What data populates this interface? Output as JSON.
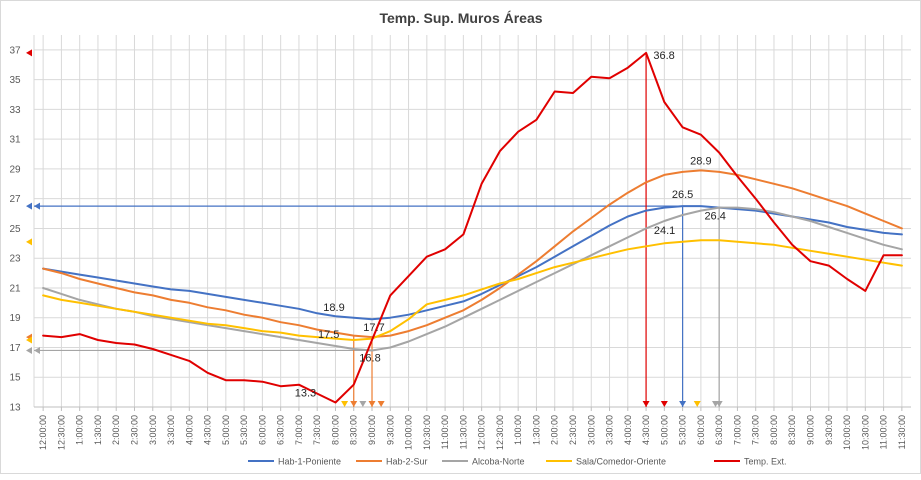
{
  "chart_data": {
    "type": "line",
    "title": "Temp. Sup. Muros Áreas",
    "xlabel": "",
    "ylabel": "",
    "ylim": [
      13,
      38
    ],
    "yticks": [
      13,
      15,
      17,
      19,
      21,
      23,
      25,
      27,
      29,
      31,
      33,
      35,
      37
    ],
    "grid": true,
    "legend_position": "bottom",
    "categories": [
      "12:00:00",
      "12:30:00",
      "1:00:00",
      "1:30:00",
      "2:00:00",
      "2:30:00",
      "3:00:00",
      "3:30:00",
      "4:00:00",
      "4:30:00",
      "5:00:00",
      "5:30:00",
      "6:00:00",
      "6:30:00",
      "7:00:00",
      "7:30:00",
      "8:00:00",
      "8:30:00",
      "9:00:00",
      "9:30:00",
      "10:00:00",
      "10:30:00",
      "11:00:00",
      "11:30:00",
      "12:00:00",
      "12:30:00",
      "1:00:00",
      "1:30:00",
      "2:00:00",
      "2:30:00",
      "3:00:00",
      "3:30:00",
      "4:00:00",
      "4:30:00",
      "5:00:00",
      "5:30:00",
      "6:00:00",
      "6:30:00",
      "7:00:00",
      "7:30:00",
      "8:00:00",
      "8:30:00",
      "9:00:00",
      "9:30:00",
      "10:00:00",
      "10:30:00",
      "11:00:00",
      "11:30:00"
    ],
    "series": [
      {
        "name": "Hab-1-Poniente",
        "color": "#4472c4",
        "values": [
          22.3,
          22.1,
          21.9,
          21.7,
          21.5,
          21.3,
          21.1,
          20.9,
          20.8,
          20.6,
          20.4,
          20.2,
          20.0,
          19.8,
          19.6,
          19.3,
          19.1,
          19.0,
          18.9,
          19.0,
          19.2,
          19.5,
          19.8,
          20.1,
          20.6,
          21.2,
          21.8,
          22.4,
          23.1,
          23.8,
          24.5,
          25.2,
          25.8,
          26.2,
          26.4,
          26.5,
          26.5,
          26.4,
          26.3,
          26.2,
          26.0,
          25.8,
          25.6,
          25.4,
          25.1,
          24.9,
          24.7,
          24.6
        ]
      },
      {
        "name": "Hab-2-Sur",
        "color": "#ed7d31",
        "values": [
          22.3,
          22.0,
          21.6,
          21.3,
          21.0,
          20.7,
          20.5,
          20.2,
          20.0,
          19.7,
          19.5,
          19.2,
          19.0,
          18.7,
          18.5,
          18.2,
          18.0,
          17.8,
          17.7,
          17.8,
          18.1,
          18.5,
          19.0,
          19.5,
          20.2,
          21.0,
          21.9,
          22.8,
          23.8,
          24.8,
          25.7,
          26.6,
          27.4,
          28.1,
          28.6,
          28.8,
          28.9,
          28.8,
          28.6,
          28.3,
          28.0,
          27.7,
          27.3,
          26.9,
          26.5,
          26.0,
          25.5,
          25.0
        ]
      },
      {
        "name": "Alcoba-Norte",
        "color": "#a5a5a5",
        "values": [
          21.0,
          20.6,
          20.2,
          19.9,
          19.6,
          19.4,
          19.1,
          18.9,
          18.7,
          18.5,
          18.3,
          18.1,
          17.9,
          17.7,
          17.5,
          17.3,
          17.1,
          16.9,
          16.8,
          17.0,
          17.4,
          17.9,
          18.4,
          19.0,
          19.6,
          20.2,
          20.8,
          21.4,
          22.0,
          22.6,
          23.2,
          23.8,
          24.4,
          25.0,
          25.5,
          25.9,
          26.2,
          26.4,
          26.4,
          26.3,
          26.1,
          25.8,
          25.5,
          25.1,
          24.7,
          24.3,
          23.9,
          23.6
        ]
      },
      {
        "name": "Sala/Comedor-Oriente",
        "color": "#ffc000",
        "values": [
          20.5,
          20.2,
          20.0,
          19.8,
          19.6,
          19.4,
          19.2,
          19.0,
          18.8,
          18.6,
          18.5,
          18.3,
          18.1,
          18.0,
          17.8,
          17.7,
          17.6,
          17.5,
          17.6,
          18.1,
          18.9,
          19.9,
          20.2,
          20.5,
          20.9,
          21.3,
          21.6,
          22.0,
          22.4,
          22.7,
          23.0,
          23.3,
          23.6,
          23.8,
          24.0,
          24.1,
          24.2,
          24.2,
          24.1,
          24.0,
          23.9,
          23.7,
          23.5,
          23.3,
          23.1,
          22.9,
          22.7,
          22.5
        ]
      },
      {
        "name": "Temp. Ext.",
        "color": "#e00000",
        "values": [
          17.8,
          17.7,
          17.9,
          17.5,
          17.3,
          17.2,
          16.9,
          16.5,
          16.1,
          15.3,
          14.8,
          14.8,
          14.7,
          14.4,
          14.5,
          13.9,
          13.3,
          14.5,
          17.5,
          20.5,
          21.8,
          23.1,
          23.6,
          24.6,
          28.0,
          30.2,
          31.5,
          32.3,
          34.2,
          34.1,
          35.2,
          35.1,
          35.8,
          36.8,
          33.5,
          31.8,
          31.3,
          30.1,
          28.5,
          27.0,
          25.4,
          23.9,
          22.8,
          22.5,
          21.6,
          20.8,
          23.2,
          23.2
        ]
      }
    ],
    "annotations": [
      {
        "text": "36.8",
        "x_index": 33,
        "y": 36.8
      },
      {
        "text": "28.9",
        "x_index": 36,
        "y": 28.9
      },
      {
        "text": "26.5",
        "x_index": 35,
        "y": 26.5
      },
      {
        "text": "26.4",
        "x_index": 37,
        "y": 26.4
      },
      {
        "text": "24.1",
        "x_index": 35,
        "y": 24.1
      },
      {
        "text": "18.9",
        "x_index": 18,
        "y": 18.9
      },
      {
        "text": "17.7",
        "x_index": 18,
        "y": 17.7
      },
      {
        "text": "17.5",
        "x_index": 17,
        "y": 17.5
      },
      {
        "text": "16.8",
        "x_index": 18,
        "y": 16.8
      },
      {
        "text": "13.3",
        "x_index": 16,
        "y": 13.3
      }
    ],
    "reference_lines": [
      {
        "orientation": "horizontal",
        "y": 26.5,
        "color": "#4472c4",
        "from_index": 0,
        "to_index": 35
      },
      {
        "orientation": "horizontal",
        "y": 16.8,
        "color": "#a5a5a5",
        "from_index": 0,
        "to_index": 18
      },
      {
        "orientation": "vertical",
        "x_index": 33,
        "color": "#e00000",
        "from_y": 36.8
      },
      {
        "orientation": "vertical",
        "x_index": 35,
        "color": "#4472c4",
        "from_y": 26.5
      },
      {
        "orientation": "vertical",
        "x_index": 37,
        "color": "#a5a5a5",
        "from_y": 26.4
      },
      {
        "orientation": "vertical",
        "x_index": 18,
        "color": "#ed7d31",
        "from_y": 17.7
      },
      {
        "orientation": "vertical",
        "x_index": 17,
        "color": "#ed7d31",
        "from_y": 17.8
      }
    ],
    "markers": [
      {
        "axis": "y",
        "value": 36.8,
        "color": "#e00000"
      },
      {
        "axis": "y",
        "value": 26.5,
        "color": "#4472c4"
      },
      {
        "axis": "y",
        "value": 24.1,
        "color": "#ffc000"
      },
      {
        "axis": "y",
        "value": 17.7,
        "color": "#ed7d31"
      },
      {
        "axis": "y",
        "value": 17.5,
        "color": "#ffc000"
      },
      {
        "axis": "y",
        "value": 16.8,
        "color": "#a5a5a5"
      },
      {
        "axis": "x",
        "index": 16.5,
        "color": "#ffc000"
      },
      {
        "axis": "x",
        "index": 17.5,
        "color": "#a5a5a5"
      },
      {
        "axis": "x",
        "index": 18.5,
        "color": "#ed7d31"
      },
      {
        "axis": "x",
        "index": 34,
        "color": "#e00000"
      },
      {
        "axis": "x",
        "index": 35.8,
        "color": "#ffc000"
      },
      {
        "axis": "x",
        "index": 36.8,
        "color": "#a5a5a5"
      }
    ]
  }
}
